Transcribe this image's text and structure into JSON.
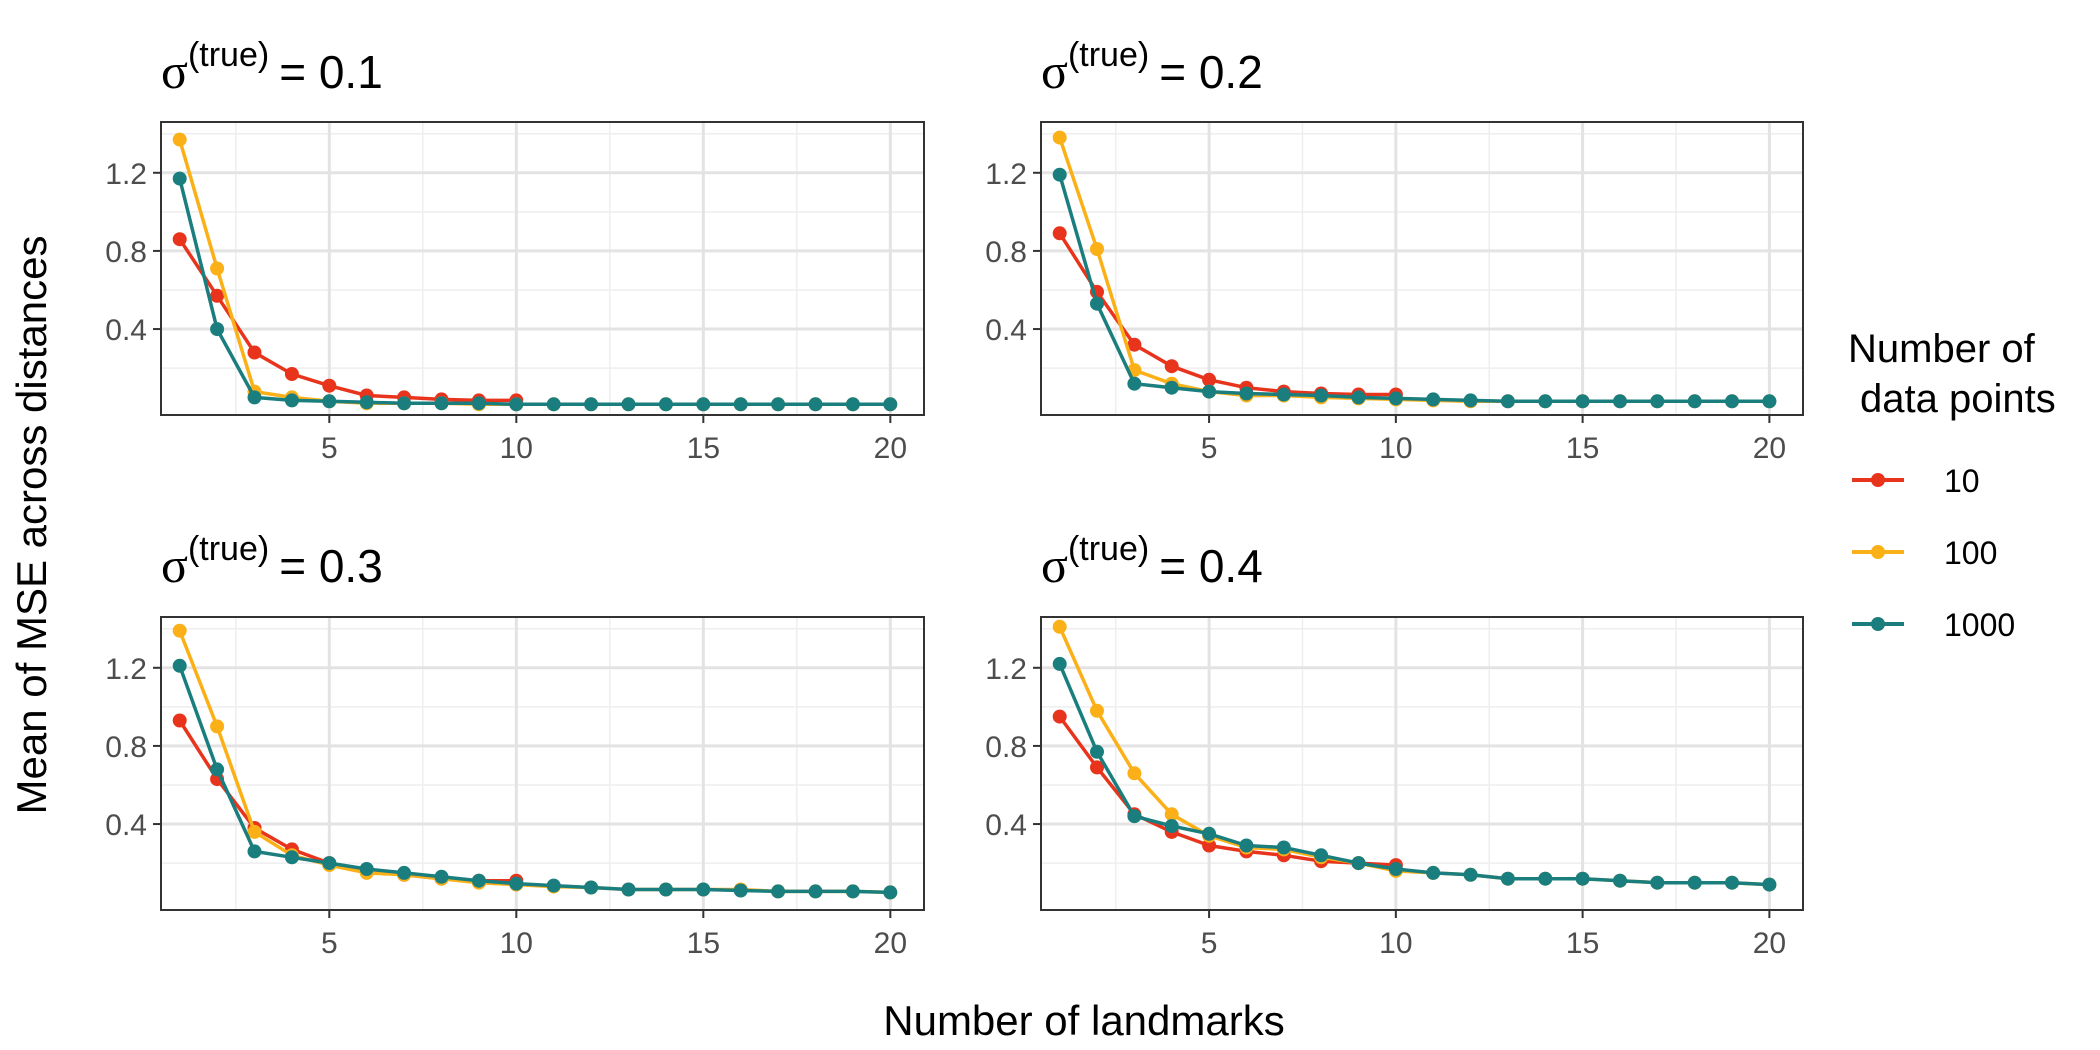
{
  "figure": {
    "ylabel": "Mean of MSE across distances",
    "xlabel": "Number of landmarks"
  },
  "legend": {
    "title_line1": "Number of",
    "title_line2": "data points",
    "entries": [
      {
        "label": "10",
        "color": "#E8341C"
      },
      {
        "label": "100",
        "color": "#FBB018"
      },
      {
        "label": "1000",
        "color": "#1B7E7E"
      }
    ]
  },
  "chart_data": [
    {
      "type": "line",
      "title_symbol": "σ",
      "title_sup": "(true)",
      "title_value": "= 0.1",
      "xlim": [
        0.5,
        20.9
      ],
      "ylim": [
        -0.04,
        1.46
      ],
      "xticks": [
        "5",
        "10",
        "15",
        "20"
      ],
      "yticks": [
        "0.4",
        "0.8",
        "1.2"
      ],
      "series": [
        {
          "name": "10",
          "x": [
            1,
            2,
            3,
            4,
            5,
            6,
            7,
            8,
            9,
            10
          ],
          "values": [
            0.86,
            0.57,
            0.28,
            0.17,
            0.11,
            0.06,
            0.05,
            0.04,
            0.035,
            0.035
          ]
        },
        {
          "name": "100",
          "x": [
            1,
            2,
            3,
            4,
            5,
            6,
            7,
            8,
            9,
            10,
            11,
            12,
            13,
            14,
            15,
            16,
            17,
            18,
            19,
            20
          ],
          "values": [
            1.37,
            0.71,
            0.08,
            0.05,
            0.03,
            0.02,
            0.02,
            0.02,
            0.015,
            0.015,
            0.015,
            0.015,
            0.015,
            0.015,
            0.015,
            0.015,
            0.015,
            0.015,
            0.015,
            0.015
          ]
        },
        {
          "name": "1000",
          "x": [
            1,
            2,
            3,
            4,
            5,
            6,
            7,
            8,
            9,
            10,
            11,
            12,
            13,
            14,
            15,
            16,
            17,
            18,
            19,
            20
          ],
          "values": [
            1.17,
            0.4,
            0.05,
            0.035,
            0.03,
            0.025,
            0.02,
            0.02,
            0.02,
            0.015,
            0.015,
            0.015,
            0.015,
            0.015,
            0.015,
            0.015,
            0.015,
            0.015,
            0.015,
            0.015
          ]
        }
      ]
    },
    {
      "type": "line",
      "title_symbol": "σ",
      "title_sup": "(true)",
      "title_value": "= 0.2",
      "xlim": [
        0.5,
        20.9
      ],
      "ylim": [
        -0.04,
        1.46
      ],
      "xticks": [
        "5",
        "10",
        "15",
        "20"
      ],
      "yticks": [
        "0.4",
        "0.8",
        "1.2"
      ],
      "series": [
        {
          "name": "10",
          "x": [
            1,
            2,
            3,
            4,
            5,
            6,
            7,
            8,
            9,
            10
          ],
          "values": [
            0.89,
            0.59,
            0.32,
            0.21,
            0.14,
            0.1,
            0.08,
            0.07,
            0.065,
            0.065
          ]
        },
        {
          "name": "100",
          "x": [
            1,
            2,
            3,
            4,
            5,
            6,
            7,
            8,
            9,
            10,
            11,
            12,
            13,
            14,
            15,
            16,
            17,
            18,
            19,
            20
          ],
          "values": [
            1.38,
            0.81,
            0.19,
            0.12,
            0.08,
            0.06,
            0.06,
            0.05,
            0.045,
            0.04,
            0.035,
            0.03,
            0.03,
            0.03,
            0.03,
            0.03,
            0.03,
            0.03,
            0.03,
            0.03
          ]
        },
        {
          "name": "1000",
          "x": [
            1,
            2,
            3,
            4,
            5,
            6,
            7,
            8,
            9,
            10,
            11,
            12,
            13,
            14,
            15,
            16,
            17,
            18,
            19,
            20
          ],
          "values": [
            1.19,
            0.53,
            0.12,
            0.1,
            0.08,
            0.07,
            0.065,
            0.06,
            0.05,
            0.045,
            0.04,
            0.035,
            0.03,
            0.03,
            0.03,
            0.03,
            0.03,
            0.03,
            0.03,
            0.03
          ]
        }
      ]
    },
    {
      "type": "line",
      "title_symbol": "σ",
      "title_sup": "(true)",
      "title_value": "= 0.3",
      "xlim": [
        0.5,
        20.9
      ],
      "ylim": [
        -0.04,
        1.46
      ],
      "xticks": [
        "5",
        "10",
        "15",
        "20"
      ],
      "yticks": [
        "0.4",
        "0.8",
        "1.2"
      ],
      "series": [
        {
          "name": "10",
          "x": [
            1,
            2,
            3,
            4,
            5,
            6,
            7,
            8,
            9,
            10
          ],
          "values": [
            0.93,
            0.63,
            0.38,
            0.27,
            0.2,
            0.16,
            0.14,
            0.12,
            0.11,
            0.11
          ]
        },
        {
          "name": "100",
          "x": [
            1,
            2,
            3,
            4,
            5,
            6,
            7,
            8,
            9,
            10,
            11,
            12,
            13,
            14,
            15,
            16,
            17,
            18,
            19,
            20
          ],
          "values": [
            1.39,
            0.9,
            0.36,
            0.24,
            0.19,
            0.15,
            0.14,
            0.12,
            0.1,
            0.09,
            0.08,
            0.075,
            0.065,
            0.065,
            0.065,
            0.065,
            0.055,
            0.055,
            0.055,
            0.05
          ]
        },
        {
          "name": "1000",
          "x": [
            1,
            2,
            3,
            4,
            5,
            6,
            7,
            8,
            9,
            10,
            11,
            12,
            13,
            14,
            15,
            16,
            17,
            18,
            19,
            20
          ],
          "values": [
            1.21,
            0.68,
            0.26,
            0.23,
            0.2,
            0.17,
            0.15,
            0.13,
            0.11,
            0.095,
            0.085,
            0.075,
            0.065,
            0.065,
            0.065,
            0.06,
            0.055,
            0.055,
            0.055,
            0.05
          ]
        }
      ]
    },
    {
      "type": "line",
      "title_symbol": "σ",
      "title_sup": "(true)",
      "title_value": "= 0.4",
      "xlim": [
        0.5,
        20.9
      ],
      "ylim": [
        -0.04,
        1.46
      ],
      "xticks": [
        "5",
        "10",
        "15",
        "20"
      ],
      "yticks": [
        "0.4",
        "0.8",
        "1.2"
      ],
      "series": [
        {
          "name": "10",
          "x": [
            1,
            2,
            3,
            4,
            5,
            6,
            7,
            8,
            9,
            10
          ],
          "values": [
            0.95,
            0.69,
            0.45,
            0.36,
            0.29,
            0.26,
            0.24,
            0.21,
            0.2,
            0.19
          ]
        },
        {
          "name": "100",
          "x": [
            1,
            2,
            3,
            4,
            5,
            6,
            7,
            8,
            9,
            10,
            11,
            12,
            13,
            14,
            15,
            16,
            17,
            18,
            19,
            20
          ],
          "values": [
            1.41,
            0.98,
            0.66,
            0.45,
            0.34,
            0.28,
            0.27,
            0.23,
            0.2,
            0.16,
            0.15,
            0.14,
            0.12,
            0.12,
            0.12,
            0.11,
            0.1,
            0.1,
            0.1,
            0.09
          ]
        },
        {
          "name": "1000",
          "x": [
            1,
            2,
            3,
            4,
            5,
            6,
            7,
            8,
            9,
            10,
            11,
            12,
            13,
            14,
            15,
            16,
            17,
            18,
            19,
            20
          ],
          "values": [
            1.22,
            0.77,
            0.44,
            0.39,
            0.35,
            0.29,
            0.28,
            0.24,
            0.2,
            0.17,
            0.15,
            0.14,
            0.12,
            0.12,
            0.12,
            0.11,
            0.1,
            0.1,
            0.1,
            0.09
          ]
        }
      ]
    }
  ]
}
